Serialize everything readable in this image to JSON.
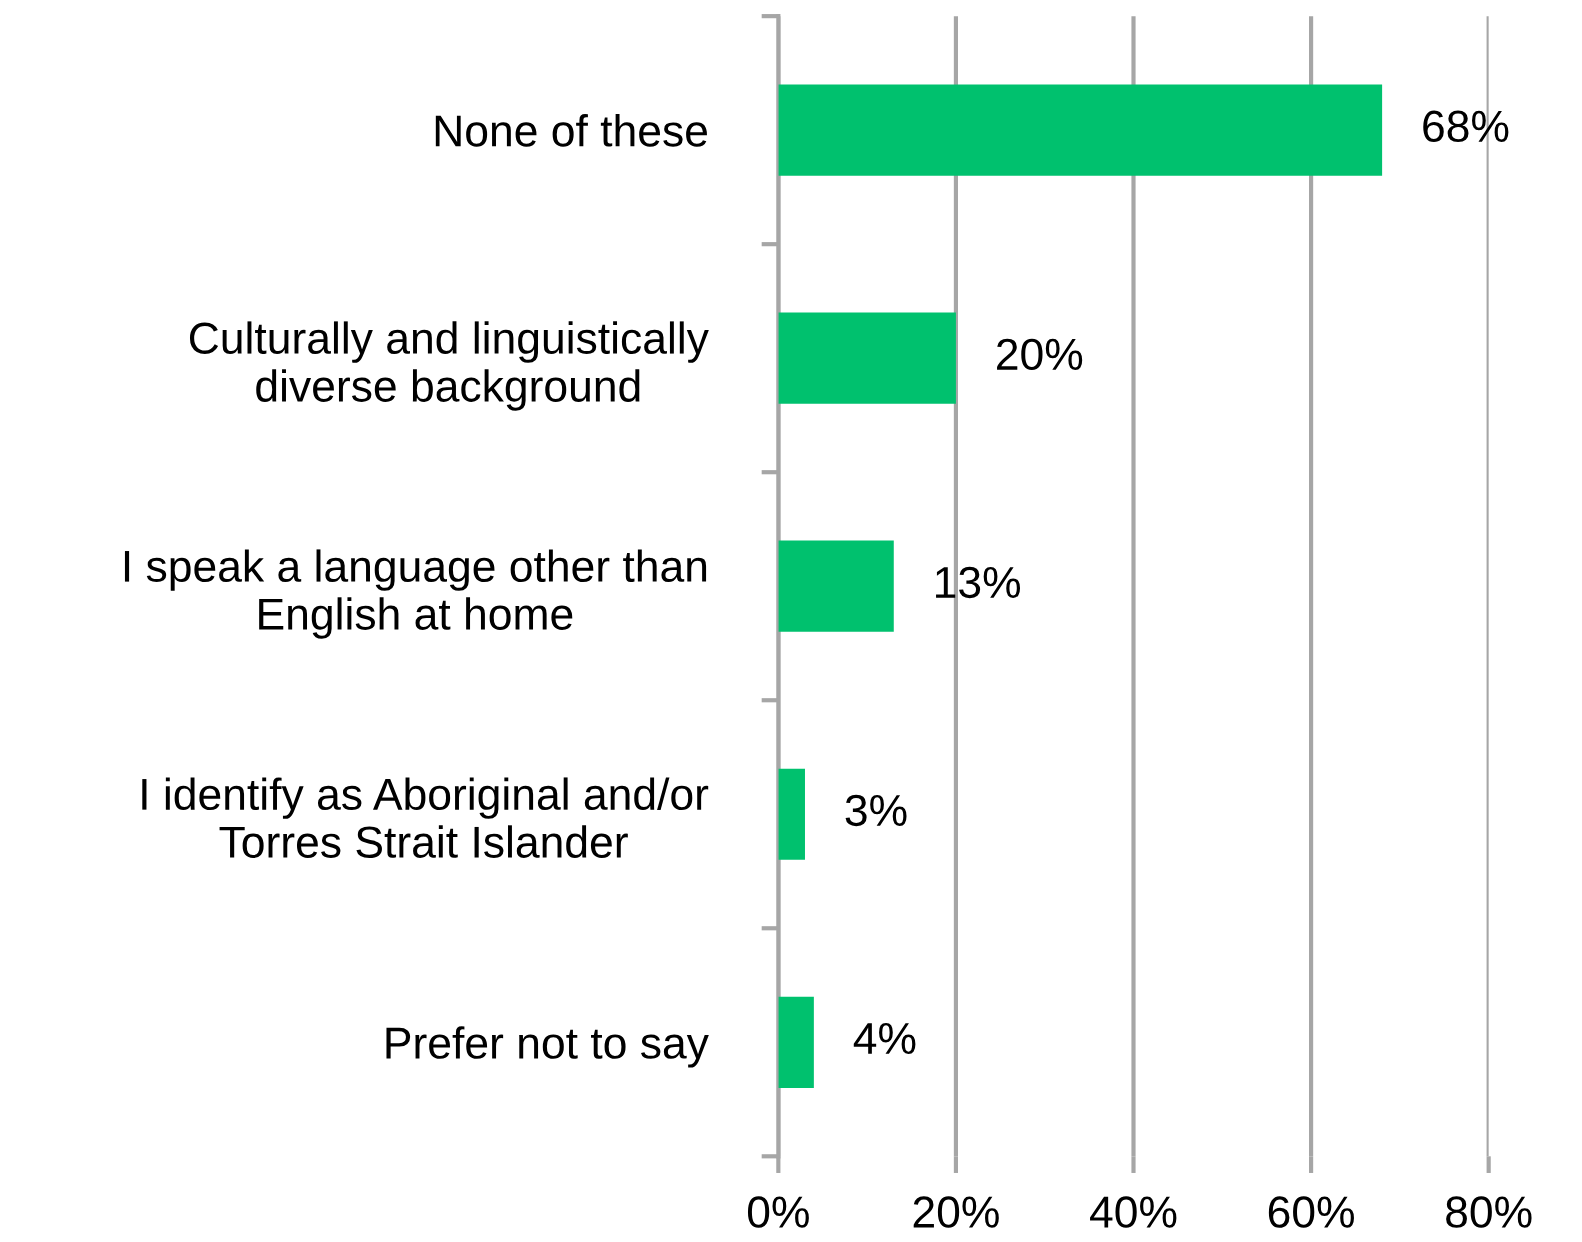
{
  "chart_data": {
    "type": "bar",
    "orientation": "horizontal",
    "categories": [
      "None of these",
      "Culturally and linguistically\ndiverse background",
      "I speak a language other than\nEnglish at home",
      "I identify as Aboriginal and/or\nTorres Strait Islander",
      "Prefer not to say"
    ],
    "values": [
      68,
      20,
      13,
      3,
      4
    ],
    "value_labels": [
      "68%",
      "20%",
      "13%",
      "3%",
      "4%"
    ],
    "color": "#00c16e",
    "xlim": [
      0,
      80
    ],
    "xticks": [
      {
        "value": 0,
        "label": "0%"
      },
      {
        "value": 20,
        "label": "20%"
      },
      {
        "value": 40,
        "label": "40%"
      },
      {
        "value": 60,
        "label": "60%"
      },
      {
        "value": 80,
        "label": "80%"
      }
    ],
    "grid": "x"
  }
}
